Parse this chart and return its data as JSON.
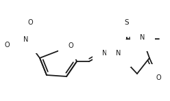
{
  "bg_color": "#ffffff",
  "line_color": "#1a1a1a",
  "line_width": 1.3,
  "font_size": 7.0,
  "fig_width": 2.48,
  "fig_height": 1.48,
  "dpi": 100,
  "xlim": [
    0,
    248
  ],
  "ylim": [
    0,
    148
  ]
}
